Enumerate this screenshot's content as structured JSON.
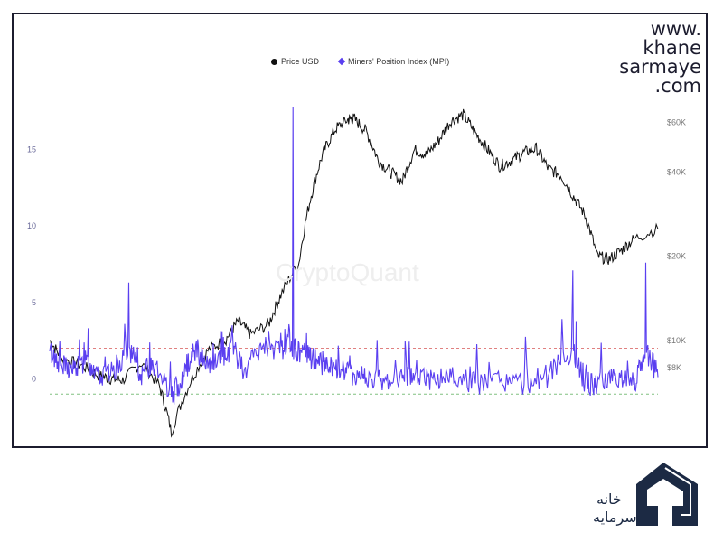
{
  "brand": {
    "lines": [
      "www.",
      "khane",
      "sarmaye",
      ".com"
    ]
  },
  "watermark": "CryptoQuant",
  "chart_data": {
    "type": "line",
    "title": "",
    "series": [
      {
        "name": "Price USD",
        "axis": "right",
        "color": "#111111",
        "x": [
          0,
          0.02,
          0.05,
          0.08,
          0.1,
          0.12,
          0.15,
          0.18,
          0.2,
          0.23,
          0.26,
          0.29,
          0.31,
          0.33,
          0.36,
          0.38,
          0.41,
          0.43,
          0.45,
          0.47,
          0.49,
          0.5,
          0.52,
          0.54,
          0.56,
          0.58,
          0.6,
          0.62,
          0.64,
          0.66,
          0.68,
          0.7,
          0.72,
          0.74,
          0.76,
          0.78,
          0.8,
          0.82,
          0.84,
          0.86,
          0.88,
          0.9,
          0.92,
          0.94,
          0.96,
          1.0
        ],
        "values": [
          10000,
          8600,
          8200,
          7500,
          7300,
          7200,
          8300,
          6900,
          4700,
          7000,
          9200,
          10100,
          11700,
          10500,
          11400,
          14500,
          19000,
          33000,
          47000,
          57000,
          61500,
          62000,
          56000,
          44000,
          40000,
          37000,
          48000,
          46000,
          52000,
          61000,
          64000,
          55000,
          48000,
          42000,
          44000,
          47000,
          48500,
          41000,
          39000,
          33000,
          28000,
          20000,
          19500,
          21000,
          23000,
          25000
        ]
      },
      {
        "name": "Miners' Position Index (MPI)",
        "axis": "left",
        "color": "#5a3ff0",
        "x": [
          0,
          0.02,
          0.04,
          0.06,
          0.08,
          0.1,
          0.13,
          0.15,
          0.17,
          0.2,
          0.22,
          0.24,
          0.26,
          0.28,
          0.3,
          0.32,
          0.35,
          0.38,
          0.4,
          0.42,
          0.44,
          0.46,
          0.48,
          0.5,
          0.52,
          0.55,
          0.58,
          0.6,
          0.63,
          0.66,
          0.7,
          0.74,
          0.78,
          0.82,
          0.86,
          0.88,
          0.9,
          0.93,
          0.96,
          0.98,
          1.0
        ],
        "values": [
          1.8,
          0.8,
          0.6,
          1.2,
          0.4,
          0.2,
          6.3,
          0.3,
          0.9,
          -1.2,
          0.2,
          2.2,
          0.7,
          1.0,
          3.5,
          0.6,
          2.1,
          3.0,
          17.8,
          1.6,
          1.2,
          0.8,
          0.6,
          0.3,
          0.1,
          -0.2,
          0.0,
          0.2,
          0.0,
          0.1,
          -0.3,
          -0.2,
          -0.4,
          0.2,
          7.1,
          -0.2,
          -0.5,
          0.3,
          -0.4,
          7.6,
          0.1
        ]
      }
    ],
    "y_left": {
      "ticks": [
        0,
        5,
        10,
        15
      ],
      "ylim": [
        -3,
        18
      ]
    },
    "y_right": {
      "ticks": [
        "$8K",
        "$10K",
        "$20K",
        "$40K",
        "$60K"
      ],
      "scale": "log"
    },
    "reference_lines": [
      {
        "value": 2,
        "color": "#e08080",
        "style": "dashed"
      },
      {
        "value": -1,
        "color": "#80c080",
        "style": "dashed"
      }
    ],
    "legend": {
      "position": "top-center",
      "entries": [
        {
          "label": "Price USD",
          "marker": "circle"
        },
        {
          "label": "Miners' Position Index (MPI)",
          "marker": "diamond"
        }
      ]
    },
    "grid": false
  }
}
